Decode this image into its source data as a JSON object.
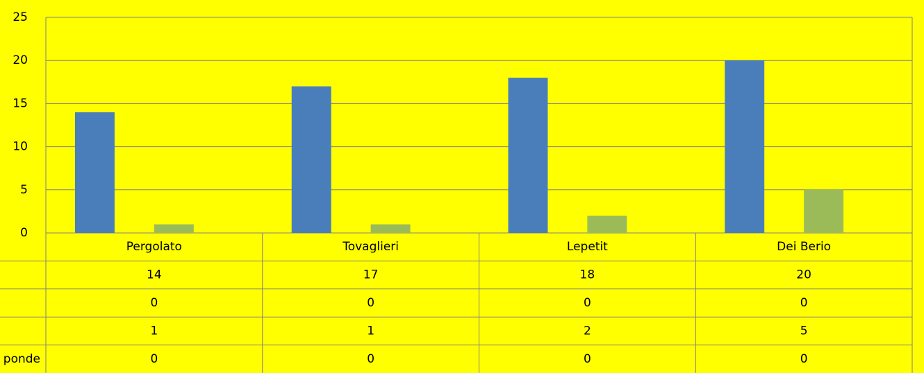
{
  "chart_data": {
    "type": "bar",
    "categories": [
      "Pergolato",
      "Tovaglieri",
      "Lepetit",
      "Dei Berio"
    ],
    "series": [
      {
        "name": null,
        "color": "#4a7ebb",
        "values": [
          14,
          17,
          18,
          20
        ]
      },
      {
        "name": null,
        "values": [
          0,
          0,
          0,
          0
        ]
      },
      {
        "name": null,
        "color": "#9bbb59",
        "values": [
          1,
          1,
          2,
          5
        ]
      },
      {
        "name": "ponde",
        "values": [
          0,
          0,
          0,
          0
        ]
      }
    ],
    "ylim": [
      0,
      25
    ],
    "yticks": [
      0,
      5,
      10,
      15,
      20,
      25
    ],
    "grid": true,
    "data_table": true
  }
}
